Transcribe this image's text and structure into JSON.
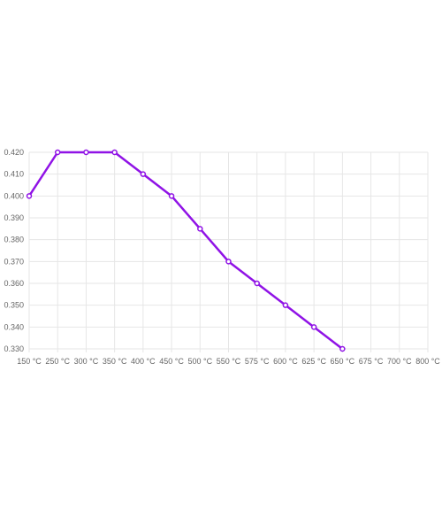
{
  "chart_data": {
    "type": "line",
    "title": "",
    "xlabel": "",
    "ylabel": "",
    "categories": [
      "150 °C",
      "250 °C",
      "300 °C",
      "350 °C",
      "400 °C",
      "450 °C",
      "500 °C",
      "550 °C",
      "575 °C",
      "600 °C",
      "625 °C",
      "650 °C",
      "675 °C",
      "700 °C",
      "800 °C"
    ],
    "series": [
      {
        "values": [
          0.4,
          0.42,
          0.42,
          0.42,
          0.41,
          0.4,
          0.385,
          0.37,
          0.36,
          0.35,
          0.34,
          0.33,
          null,
          null,
          null
        ]
      }
    ],
    "y_ticks": [
      "0.420",
      "0.410",
      "0.400",
      "0.390",
      "0.380",
      "0.370",
      "0.360",
      "0.350",
      "0.340",
      "0.330"
    ],
    "ylim": [
      0.33,
      0.42
    ],
    "grid": true,
    "line_color": "#9013e6",
    "grid_color": "#e6e6e6",
    "axis_text_color": "#666666"
  }
}
